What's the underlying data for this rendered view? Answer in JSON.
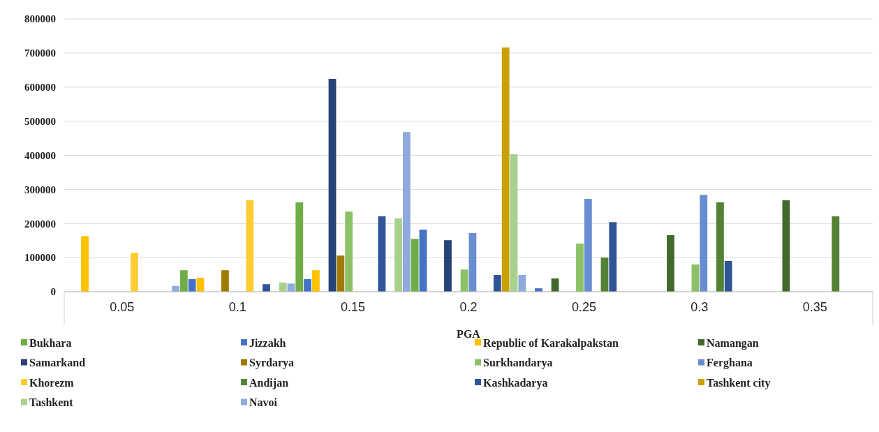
{
  "chart_data": {
    "type": "bar",
    "xlabel": "PGA",
    "categories": [
      "0.05",
      "0.1",
      "0.15",
      "0.2",
      "0.25",
      "0.3",
      "0.35"
    ],
    "ylim": [
      0,
      800000
    ],
    "yticks": [
      0,
      100000,
      200000,
      300000,
      400000,
      500000,
      600000,
      700000,
      800000
    ],
    "grid": "y",
    "legend": "bottom",
    "series": [
      {
        "name": "Bukhara",
        "color": "#70ad47",
        "values": [
          null,
          63000,
          262000,
          155000,
          null,
          null,
          null
        ]
      },
      {
        "name": "Jizzakh",
        "color": "#4472c4",
        "values": [
          null,
          37000,
          37000,
          182000,
          10000,
          null,
          null
        ]
      },
      {
        "name": "Republic of Karakalpakstan",
        "color": "#ffc000",
        "values": [
          163000,
          41000,
          63000,
          null,
          null,
          null,
          null
        ]
      },
      {
        "name": "Namangan",
        "color": "#43682b",
        "values": [
          null,
          null,
          null,
          null,
          39000,
          166000,
          268000
        ]
      },
      {
        "name": "Samarkand",
        "color": "#264478",
        "values": [
          null,
          null,
          624000,
          151000,
          null,
          null,
          null
        ]
      },
      {
        "name": "Syrdarya",
        "color": "#9e7b00",
        "values": [
          null,
          63000,
          106000,
          null,
          null,
          null,
          null
        ]
      },
      {
        "name": "Surkhandarya",
        "color": "#8cc168",
        "values": [
          null,
          null,
          235000,
          65000,
          141000,
          80000,
          null
        ]
      },
      {
        "name": "Ferghana",
        "color": "#698ed0",
        "values": [
          null,
          null,
          null,
          172000,
          272000,
          284000,
          null
        ]
      },
      {
        "name": "Khorezm",
        "color": "#ffcd33",
        "values": [
          114000,
          268000,
          null,
          null,
          null,
          null,
          null
        ]
      },
      {
        "name": "Andijan",
        "color": "#548235",
        "values": [
          null,
          null,
          null,
          null,
          100000,
          262000,
          221000
        ]
      },
      {
        "name": "Kashkadarya",
        "color": "#2f5597",
        "values": [
          null,
          22000,
          221000,
          49000,
          204000,
          90000,
          null
        ]
      },
      {
        "name": "Tashkent city",
        "color": "#c9a000",
        "values": [
          null,
          null,
          null,
          716000,
          null,
          null,
          null
        ]
      },
      {
        "name": "Tashkent",
        "color": "#a9d18e",
        "values": [
          null,
          27000,
          215000,
          403000,
          null,
          null,
          null
        ]
      },
      {
        "name": "Navoi",
        "color": "#8faadc",
        "values": [
          17000,
          24000,
          468000,
          49000,
          null,
          null,
          null
        ]
      }
    ]
  }
}
